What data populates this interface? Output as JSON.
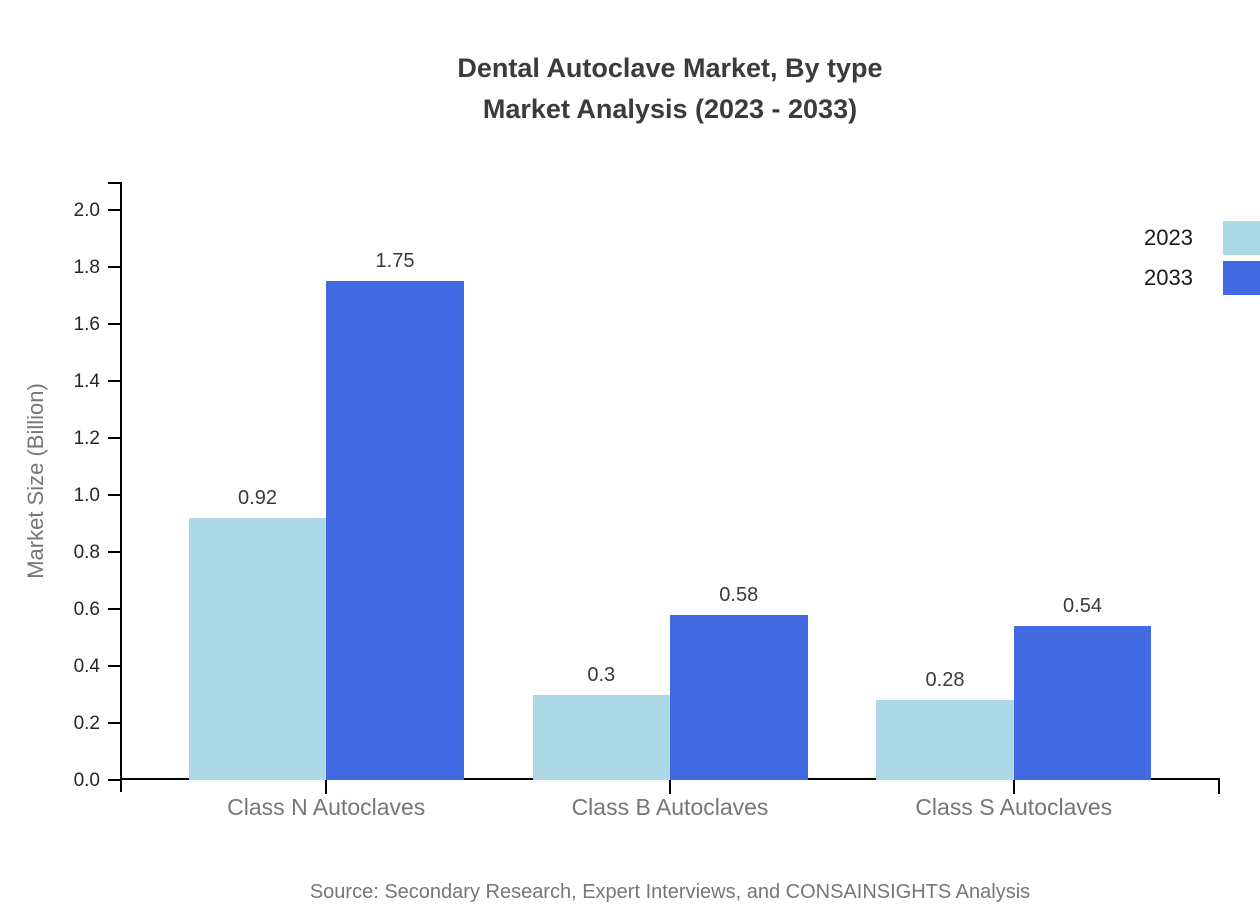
{
  "chart_data": {
    "type": "bar",
    "title": "Dental Autoclave Market, By type",
    "subtitle": "Market Analysis (2023 - 2033)",
    "categories": [
      "Class N Autoclaves",
      "Class B Autoclaves",
      "Class S Autoclaves"
    ],
    "series": [
      {
        "name": "2023",
        "color": "#ADD8E6",
        "values": [
          0.92,
          0.3,
          0.28
        ]
      },
      {
        "name": "2033",
        "color": "#4169E1",
        "values": [
          1.75,
          0.58,
          0.54
        ]
      }
    ],
    "xlabel": "",
    "ylabel": "Market Size (Billion)",
    "ylim": [
      0.0,
      2.1
    ],
    "yticks": [
      0.0,
      0.2,
      0.4,
      0.6,
      0.8,
      1.0,
      1.2,
      1.4,
      1.6,
      1.8,
      2.0
    ],
    "grid": false,
    "legend_position": "top-right-outside",
    "bar_value_labels": true
  },
  "source": "Source: Secondary Research, Expert Interviews, and CONSAINSIGHTS Analysis",
  "colors": {
    "axis": "#000000",
    "title_text": "#3b3b3b",
    "tick_label_text": "#262626",
    "muted_label_text": "#767676"
  }
}
